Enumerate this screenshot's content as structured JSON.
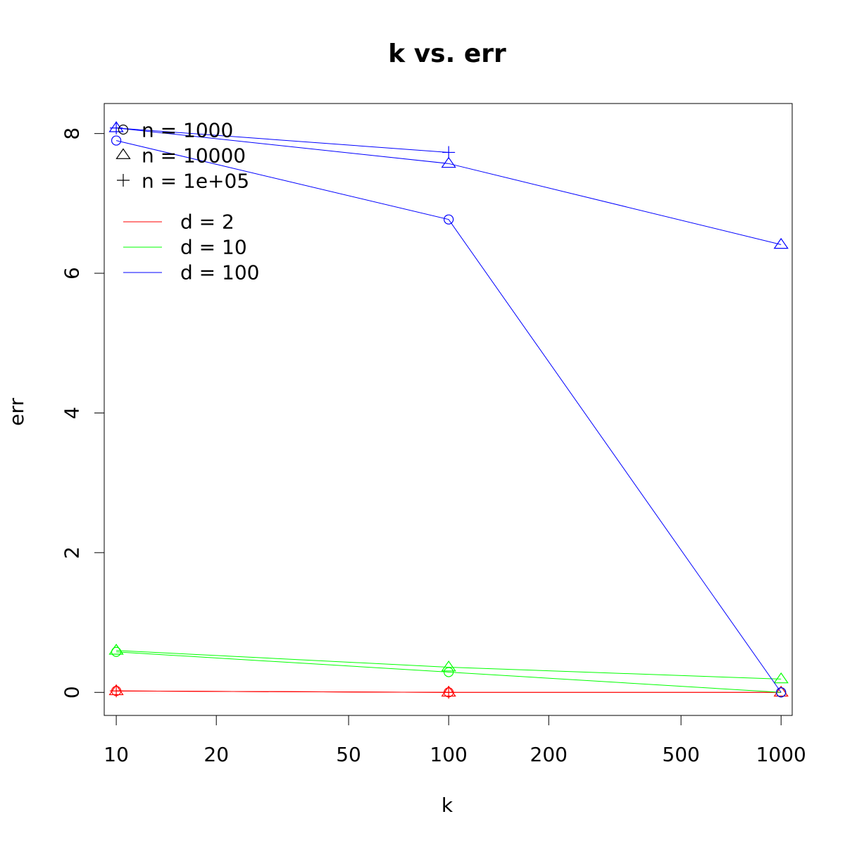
{
  "chart_data": {
    "type": "line",
    "title": "k vs. err",
    "xlabel": "k",
    "ylabel": "err",
    "x_scale": "log",
    "xlim": [
      9.2,
      1080
    ],
    "ylim": [
      -0.33,
      8.43
    ],
    "x_ticks": [
      10,
      20,
      50,
      100,
      200,
      500,
      1000
    ],
    "x_tick_labels": [
      "10",
      "20",
      "50",
      "100",
      "200",
      "500",
      "1000"
    ],
    "y_ticks": [
      0,
      2,
      4,
      6,
      8
    ],
    "y_tick_labels": [
      "0",
      "2",
      "4",
      "6",
      "8"
    ],
    "grid": false,
    "legend_placement": "top-left",
    "shape_legend": [
      {
        "marker": "circle",
        "label": "n = 1000"
      },
      {
        "marker": "triangle",
        "label": "n = 10000"
      },
      {
        "marker": "plus",
        "label": "n = 1e+05"
      }
    ],
    "color_legend": [
      {
        "color": "#ff0000",
        "label": "d = 2"
      },
      {
        "color": "#00ff00",
        "label": "d = 10"
      },
      {
        "color": "#0000ff",
        "label": "d = 100"
      }
    ],
    "series": [
      {
        "n": "n = 1000",
        "d": "d = 2",
        "color": "#ff0000",
        "marker": "circle",
        "x": [
          10,
          100,
          1000
        ],
        "y": [
          0.02,
          0.0,
          0.0
        ]
      },
      {
        "n": "n = 10000",
        "d": "d = 2",
        "color": "#ff0000",
        "marker": "triangle",
        "x": [
          10,
          100,
          1000
        ],
        "y": [
          0.02,
          0.0,
          0.0
        ]
      },
      {
        "n": "n = 1e+05",
        "d": "d = 2",
        "color": "#ff0000",
        "marker": "plus",
        "x": [
          10,
          100
        ],
        "y": [
          0.02,
          0.0
        ]
      },
      {
        "n": "n = 1000",
        "d": "d = 10",
        "color": "#00ff00",
        "marker": "circle",
        "x": [
          10,
          100,
          1000
        ],
        "y": [
          0.58,
          0.29,
          0.0
        ]
      },
      {
        "n": "n = 10000",
        "d": "d = 10",
        "color": "#00ff00",
        "marker": "triangle",
        "x": [
          10,
          100,
          1000
        ],
        "y": [
          0.6,
          0.36,
          0.19
        ]
      },
      {
        "n": "n = 1000",
        "d": "d = 100",
        "color": "#0000ff",
        "marker": "circle",
        "x": [
          10,
          100,
          1000
        ],
        "y": [
          7.9,
          6.77,
          0.0
        ]
      },
      {
        "n": "n = 10000",
        "d": "d = 100",
        "color": "#0000ff",
        "marker": "triangle",
        "x": [
          10,
          100,
          1000
        ],
        "y": [
          8.08,
          7.57,
          6.41
        ]
      },
      {
        "n": "n = 1e+05",
        "d": "d = 100",
        "color": "#0000ff",
        "marker": "plus",
        "x": [
          10,
          100
        ],
        "y": [
          8.08,
          7.73
        ]
      }
    ]
  }
}
